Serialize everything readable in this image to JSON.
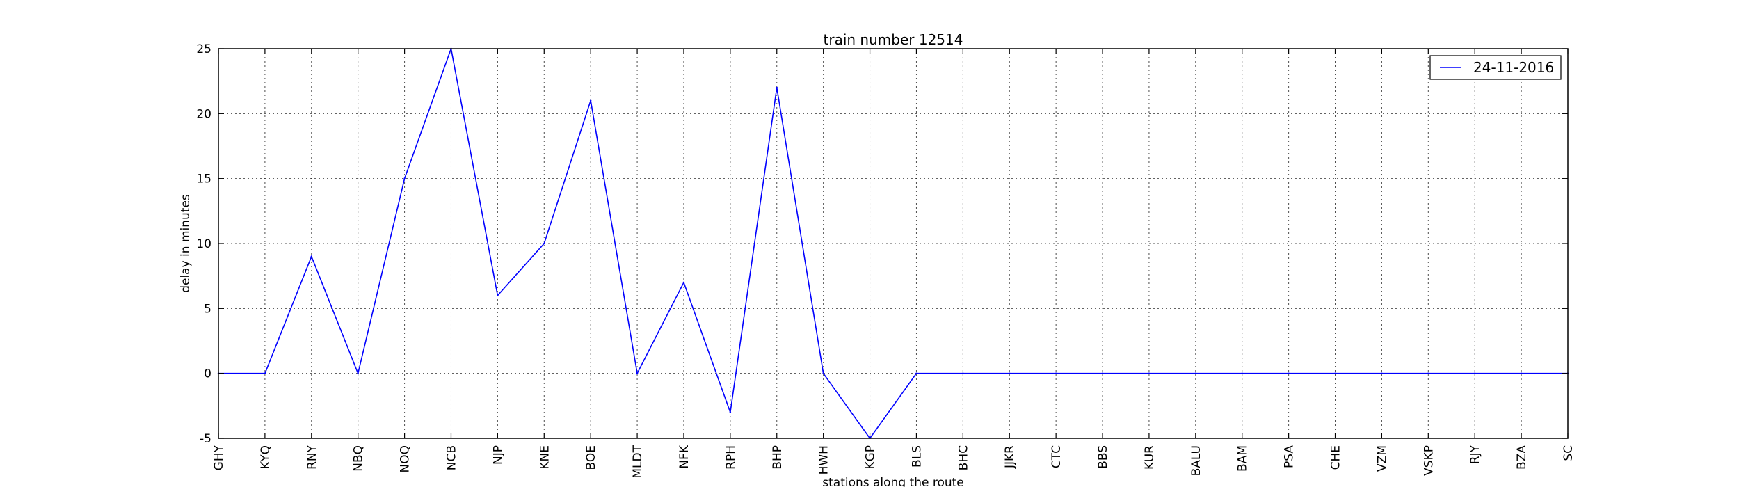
{
  "chart_data": {
    "type": "line",
    "title": "train number 12514",
    "xlabel": "stations along the route",
    "ylabel": "delay in minutes",
    "categories": [
      "GHY",
      "KYQ",
      "RNY",
      "NBQ",
      "NOQ",
      "NCB",
      "NJP",
      "KNE",
      "BOE",
      "MLDT",
      "NFK",
      "RPH",
      "BHP",
      "HWH",
      "KGP",
      "BLS",
      "BHC",
      "JJKR",
      "CTC",
      "BBS",
      "KUR",
      "BALU",
      "BAM",
      "PSA",
      "CHE",
      "VZM",
      "VSKP",
      "RJY",
      "BZA",
      "SC"
    ],
    "series": [
      {
        "name": "24-11-2016",
        "color": "#0000ff",
        "values": [
          0,
          0,
          9,
          0,
          15,
          25,
          6,
          10,
          21,
          0,
          7,
          -3,
          22,
          0,
          -5,
          0,
          0,
          0,
          0,
          0,
          0,
          0,
          0,
          0,
          0,
          0,
          0,
          0,
          0,
          0
        ]
      }
    ],
    "ylim": [
      -5,
      25
    ],
    "yticks": [
      -5,
      0,
      5,
      10,
      15,
      20,
      25
    ],
    "grid": true,
    "grid_style": "dotted",
    "legend_position": "top-right"
  }
}
